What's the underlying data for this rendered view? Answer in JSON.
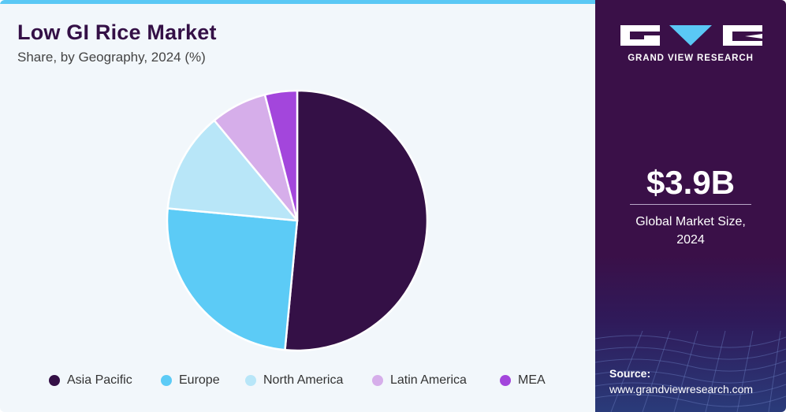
{
  "header": {
    "title": "Low GI Rice Market",
    "subtitle": "Share, by Geography, 2024 (%)"
  },
  "sidebar": {
    "brand": "GRAND VIEW RESEARCH",
    "market_value": "$3.9B",
    "market_label_line1": "Global Market Size,",
    "market_label_line2": "2024",
    "source_label": "Source:",
    "source_url": "www.grandviewresearch.com"
  },
  "colors": {
    "accent": "#5ac8f5",
    "brand_dark": "#3a1048"
  },
  "chart_data": {
    "type": "pie",
    "title": "Low GI Rice Market",
    "subtitle": "Share, by Geography, 2024 (%)",
    "legend_placement": "bottom",
    "categories": [
      "Asia Pacific",
      "Europe",
      "North America",
      "Latin America",
      "MEA"
    ],
    "values": [
      51.5,
      25.0,
      12.5,
      7.0,
      4.0
    ],
    "colors": [
      "#341046",
      "#5ccbf6",
      "#b8e6f8",
      "#d6aeea",
      "#a346dc"
    ]
  }
}
